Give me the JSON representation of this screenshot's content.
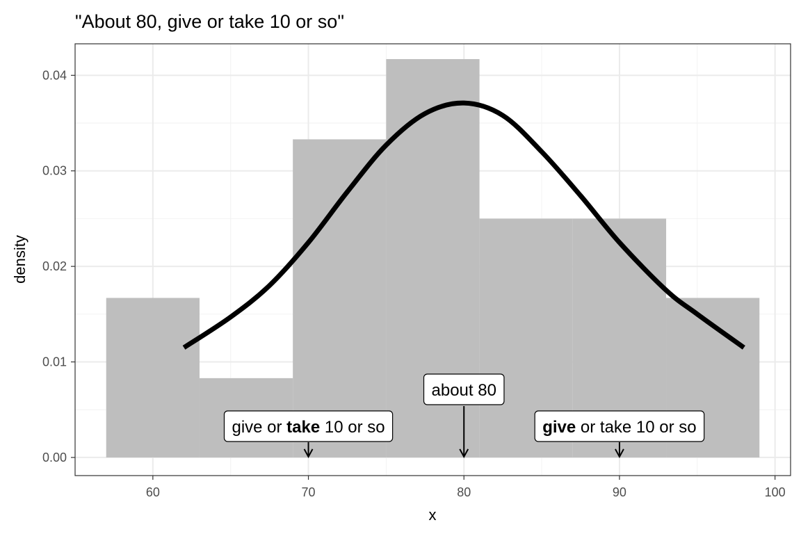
{
  "chart_data": {
    "type": "bar",
    "title": "\"About 80, give or take 10 or so\"",
    "xlabel": "x",
    "ylabel": "density",
    "xlim": [
      55,
      101
    ],
    "ylim": [
      -0.0019,
      0.0433
    ],
    "x_ticks": [
      "60",
      "70",
      "80",
      "90",
      "100"
    ],
    "y_ticks": [
      "0.00",
      "0.01",
      "0.02",
      "0.03",
      "0.04"
    ],
    "histogram": {
      "color": "#bebebe",
      "bins": [
        {
          "x0": 57,
          "x1": 63,
          "density": 0.0167
        },
        {
          "x0": 63,
          "x1": 69,
          "density": 0.0083
        },
        {
          "x0": 69,
          "x1": 75,
          "density": 0.0333
        },
        {
          "x0": 75,
          "x1": 81,
          "density": 0.0417
        },
        {
          "x0": 81,
          "x1": 87,
          "density": 0.025
        },
        {
          "x0": 87,
          "x1": 93,
          "density": 0.025
        },
        {
          "x0": 93,
          "x1": 99,
          "density": 0.0167
        }
      ]
    },
    "density_curve": {
      "color": "#000000",
      "points": [
        [
          62,
          0.0115
        ],
        [
          65,
          0.0147
        ],
        [
          67.5,
          0.018
        ],
        [
          70,
          0.0225
        ],
        [
          72.5,
          0.0278
        ],
        [
          75,
          0.0327
        ],
        [
          77.5,
          0.036
        ],
        [
          80,
          0.0371
        ],
        [
          82.5,
          0.0358
        ],
        [
          85,
          0.032
        ],
        [
          87.5,
          0.0274
        ],
        [
          90,
          0.0225
        ],
        [
          93,
          0.0175
        ],
        [
          95,
          0.015
        ],
        [
          98,
          0.0115
        ]
      ]
    },
    "grid": true,
    "annotations": [
      {
        "x": 70,
        "y": 0,
        "parts": [
          {
            "text": "give or ",
            "bold": false
          },
          {
            "text": "take",
            "bold": true
          },
          {
            "text": " 10 or so",
            "bold": false
          }
        ]
      },
      {
        "x": 80,
        "y": 0,
        "parts": [
          {
            "text": "about 80",
            "bold": false
          }
        ]
      },
      {
        "x": 90,
        "y": 0,
        "parts": [
          {
            "text": "give",
            "bold": true
          },
          {
            "text": " or take 10 or so",
            "bold": false
          }
        ]
      }
    ]
  }
}
